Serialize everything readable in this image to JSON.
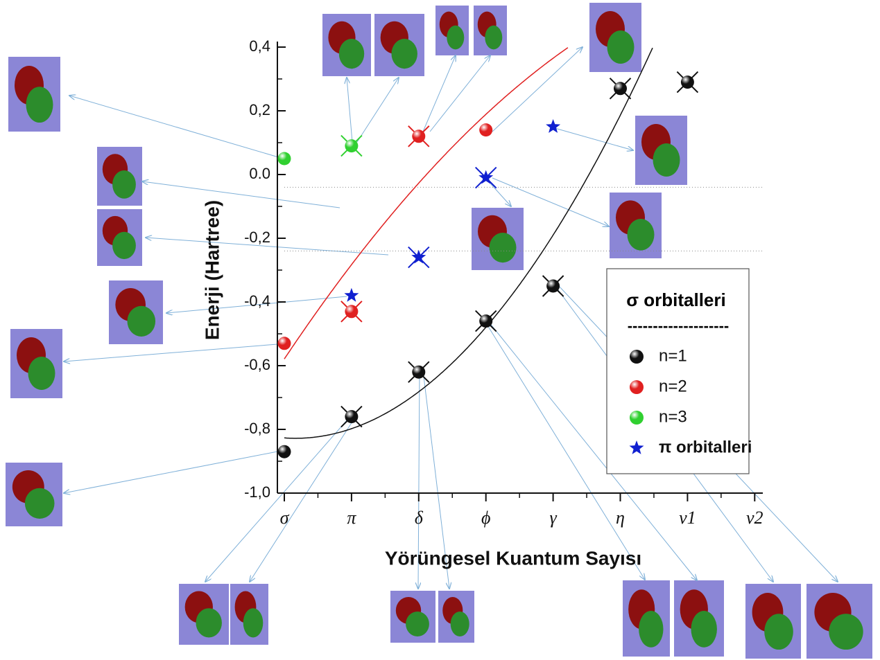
{
  "chart_data": {
    "type": "scatter",
    "x_label": "Yörüngesel Kuantum Sayısı",
    "y_label": "Enerji (Hartree)",
    "categories": [
      "σ",
      "π",
      "δ",
      "ϕ",
      "γ",
      "η",
      "ν1",
      "ν2"
    ],
    "ylim": [
      -1.0,
      0.4
    ],
    "yticks": [
      {
        "value": 0.4,
        "label": "0,4"
      },
      {
        "value": 0.2,
        "label": "0,2"
      },
      {
        "value": 0.0,
        "label": "0.0"
      },
      {
        "value": -0.2,
        "label": "-0,2"
      },
      {
        "value": -0.4,
        "label": "-0,4"
      },
      {
        "value": -0.6,
        "label": "-0,6"
      },
      {
        "value": -0.8,
        "label": "-0,8"
      },
      {
        "value": -1.0,
        "label": "-1,0"
      }
    ],
    "hlines": [
      -0.04,
      -0.24
    ],
    "legend_title": "σ orbitalleri",
    "legend_separator": "--------------------",
    "legend_position": "lower right",
    "series": [
      {
        "name": "n=1",
        "color": "#111111",
        "marker": "sphere",
        "fit": true,
        "values": [
          -0.87,
          -0.76,
          -0.62,
          -0.46,
          -0.35,
          0.27,
          0.29,
          null
        ],
        "crossed": [
          false,
          true,
          true,
          true,
          true,
          true,
          true,
          false
        ]
      },
      {
        "name": "n=2",
        "color": "#e02020",
        "marker": "sphere",
        "fit": true,
        "values": [
          -0.53,
          -0.43,
          0.12,
          0.14,
          null,
          null,
          null,
          null
        ],
        "crossed": [
          false,
          true,
          true,
          false,
          false,
          false,
          false,
          false
        ]
      },
      {
        "name": "n=3",
        "color": "#30d030",
        "marker": "sphere",
        "fit": false,
        "values": [
          0.05,
          0.09,
          null,
          null,
          null,
          null,
          null,
          null
        ],
        "crossed": [
          false,
          true,
          false,
          false,
          false,
          false,
          false,
          false
        ]
      },
      {
        "name": "π orbitalleri",
        "color": "#1020d0",
        "marker": "star",
        "fit": false,
        "values": [
          null,
          -0.38,
          -0.26,
          -0.01,
          0.15,
          null,
          null,
          null
        ],
        "crossed": [
          false,
          false,
          true,
          true,
          false,
          false,
          false,
          false
        ]
      }
    ]
  }
}
